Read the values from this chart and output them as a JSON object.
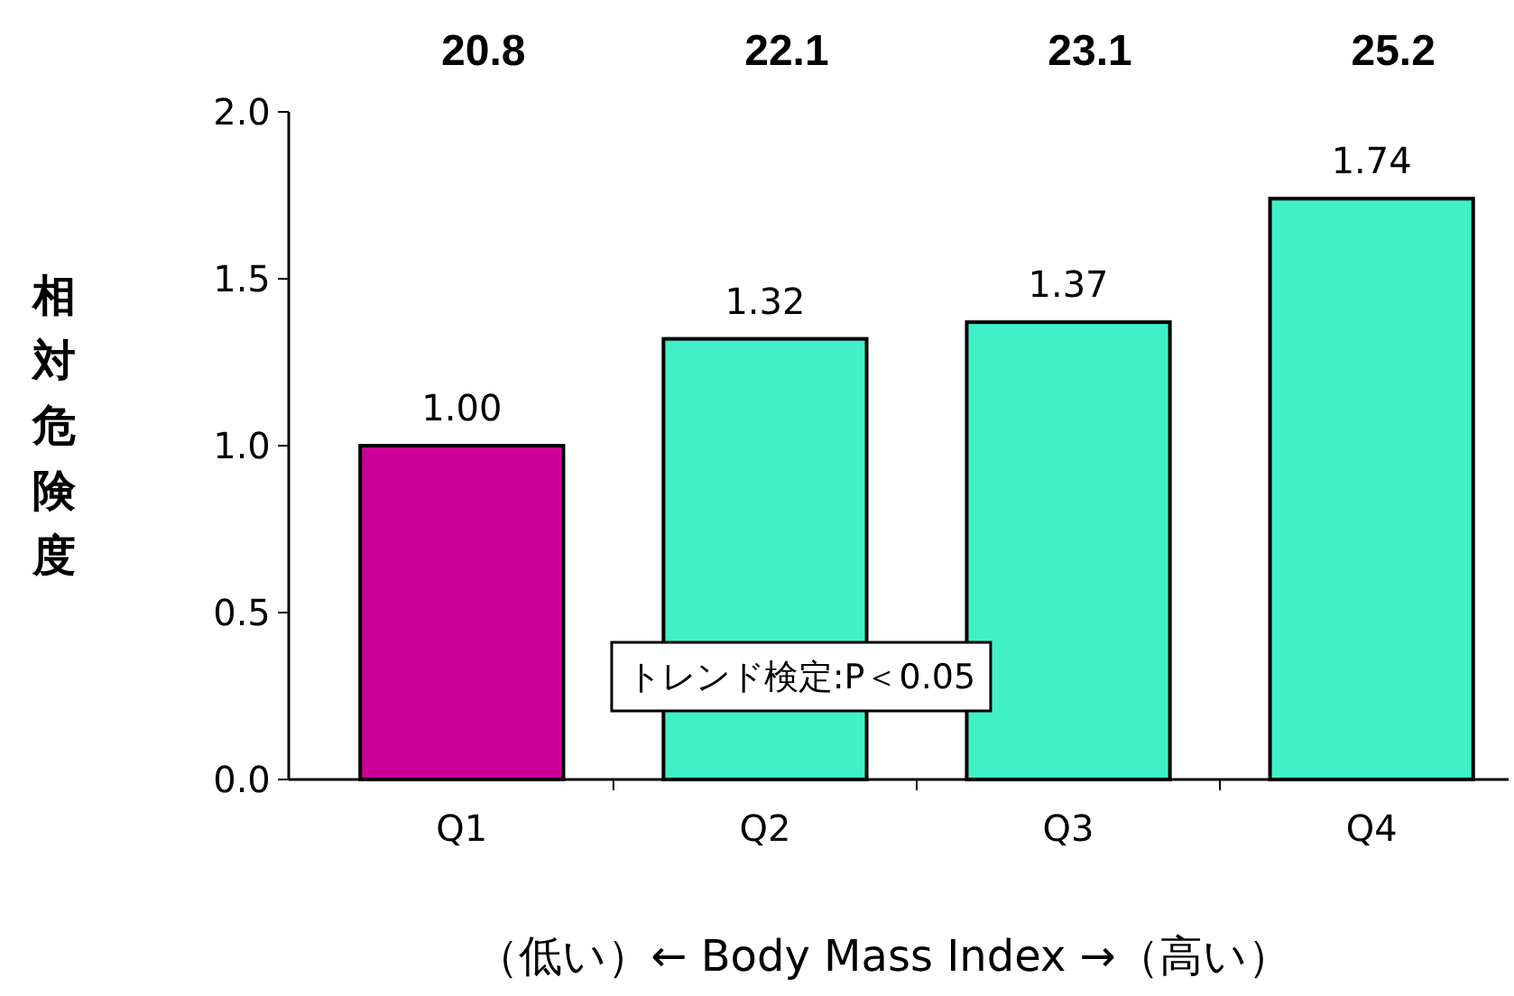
{
  "chart_data": {
    "type": "bar",
    "ylabel": "相対危険度",
    "xlabel": "（低い）←  Body Mass Index  →（高い）",
    "categories": [
      "Q1",
      "Q2",
      "Q3",
      "Q4"
    ],
    "values": [
      1.0,
      1.32,
      1.37,
      1.74
    ],
    "colors": [
      "#cc0099",
      "#40f0c8",
      "#40f0c8",
      "#40f0c8"
    ],
    "ylim": [
      0,
      2
    ],
    "yticks": [
      {
        "value": 0,
        "label": "0.0"
      },
      {
        "value": 0.5,
        "label": "0.5"
      },
      {
        "value": 1,
        "label": "1.0"
      },
      {
        "value": 1.5,
        "label": "1.5"
      },
      {
        "value": 2,
        "label": "2.0"
      }
    ],
    "value_labels": [
      "1.00",
      "1.32",
      "1.37",
      "1.74"
    ],
    "annotations": [
      "20.8",
      "22.1",
      "23.1",
      "25.2",
      "トレンド検定:P＜0.05"
    ],
    "grid": false
  }
}
